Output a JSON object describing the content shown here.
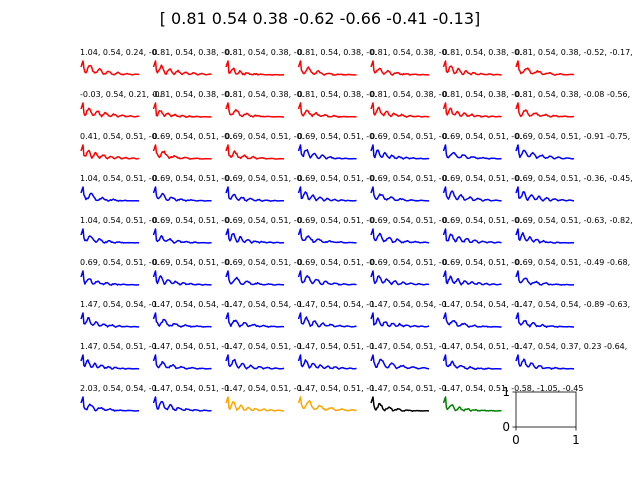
{
  "figure": {
    "suptitle": "[ 0.81  0.54  0.38 -0.62 -0.66 -0.41 -0.13]"
  },
  "colors": {
    "red": "#ff0000",
    "blue": "#0000ff",
    "orange": "#ffa500",
    "black": "#000000",
    "green": "#008000"
  },
  "chart_data": {
    "type": "line",
    "layout": "grid of small-multiple line plots, 9 rows x 7 columns; axes hidden on all panels except the last, which is empty",
    "panel_colors": [
      [
        "red",
        "red",
        "red",
        "red",
        "red",
        "red",
        "red"
      ],
      [
        "red",
        "red",
        "red",
        "red",
        "red",
        "red",
        "red"
      ],
      [
        "red",
        "red",
        "red",
        "blue",
        "blue",
        "blue",
        "blue"
      ],
      [
        "blue",
        "blue",
        "blue",
        "blue",
        "blue",
        "blue",
        "blue"
      ],
      [
        "blue",
        "blue",
        "blue",
        "blue",
        "blue",
        "blue",
        "blue"
      ],
      [
        "blue",
        "blue",
        "blue",
        "blue",
        "blue",
        "blue",
        "blue"
      ],
      [
        "blue",
        "blue",
        "blue",
        "blue",
        "blue",
        "blue",
        "blue"
      ],
      [
        "blue",
        "blue",
        "blue",
        "blue",
        "blue",
        "blue",
        "blue"
      ],
      [
        "blue",
        "blue",
        "orange",
        "orange",
        "black",
        "green",
        "empty"
      ]
    ],
    "panel_titles": [
      [
        "1.04, 0.54, 0.24, -0.",
        "0.81, 0.54, 0.38, -0.",
        "0.81, 0.54, 0.38, -0.",
        "0.81, 0.54, 0.38, -0.",
        "0.81, 0.54, 0.38, -0.",
        "0.81, 0.54, 0.38, -0.",
        "0.81, 0.54, 0.38, -0.52, -0.17,"
      ],
      [
        "-0.03, 0.54, 0.21, -0.",
        "0.81, 0.54, 0.38, -0.",
        "0.81, 0.54, 0.38, -0.",
        "0.81, 0.54, 0.38, -0.",
        "0.81, 0.54, 0.38, -0.",
        "0.81, 0.54, 0.38, -0.",
        "0.81, 0.54, 0.38, -0.08 -0.56,"
      ],
      [
        "0.41, 0.54, 0.51, -0.",
        "0.69, 0.54, 0.51, -0.",
        "0.69, 0.54, 0.51, -0.",
        "0.69, 0.54, 0.51, -0.",
        "0.69, 0.54, 0.51, -0.",
        "0.69, 0.54, 0.51, -0.",
        "0.69, 0.54, 0.51, -0.91 -0.75,"
      ],
      [
        "1.04, 0.54, 0.51, -0.",
        "0.69, 0.54, 0.51, -0.",
        "0.69, 0.54, 0.51, -0.",
        "0.69, 0.54, 0.51, -0.",
        "0.69, 0.54, 0.51, -0.",
        "0.69, 0.54, 0.51, -0.",
        "0.69, 0.54, 0.51, -0.36, -0.45,"
      ],
      [
        "1.04, 0.54, 0.51, -0.",
        "0.69, 0.54, 0.51, -0.",
        "0.69, 0.54, 0.51, -0.",
        "0.69, 0.54, 0.51, -0.",
        "0.69, 0.54, 0.51, -0.",
        "0.69, 0.54, 0.51, -0.",
        "0.69, 0.54, 0.51, -0.63, -0.82,"
      ],
      [
        "0.69, 0.54, 0.51, -0.",
        "0.69, 0.54, 0.51, -0.",
        "0.69, 0.54, 0.51, -0.",
        "0.69, 0.54, 0.51, -0.",
        "0.69, 0.54, 0.51, -0.",
        "0.69, 0.54, 0.51, -0.",
        "0.69, 0.54, 0.51, -0.49 -0.68,"
      ],
      [
        "1.47, 0.54, 0.54, -0.",
        "1.47, 0.54, 0.54, -0.",
        "1.47, 0.54, 0.54, -0.",
        "1.47, 0.54, 0.54, -0.",
        "1.47, 0.54, 0.54, -0.",
        "1.47, 0.54, 0.54, -0.",
        "1.47, 0.54, 0.54, -0.89 -0.63,"
      ],
      [
        "1.47, 0.54, 0.51, -0.",
        "1.47, 0.54, 0.51, -0.",
        "1.47, 0.54, 0.51, -0.",
        "1.47, 0.54, 0.51, -0.",
        "1.47, 0.54, 0.51, -0.",
        "1.47, 0.54, 0.51, -0.",
        "1.47, 0.54, 0.37, 0.23 -0.64,"
      ],
      [
        "2.03, 0.54, 0.54, -0.",
        "1.47, 0.54, 0.51, -0.",
        "1.47, 0.54, 0.51, -0.",
        "1.47, 0.54, 0.51, -0.",
        "1.47, 0.54, 0.51, -0.",
        "1.47, 0.54, 0.51, -0.58, -1.05, -0.45",
        ""
      ]
    ],
    "empty_panel": {
      "xlim": [
        0,
        1
      ],
      "ylim": [
        0,
        1
      ],
      "xticks": [
        "0",
        "1"
      ],
      "yticks": [
        "0",
        "1"
      ]
    },
    "series_shape": {
      "x_points": 60,
      "description": "damped oscillating decay curve per panel"
    }
  }
}
